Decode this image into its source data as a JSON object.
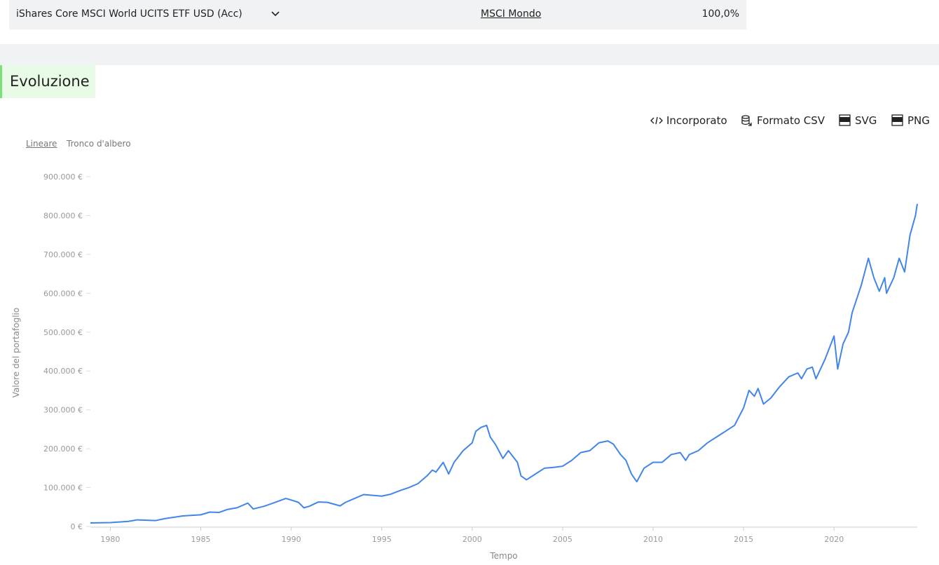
{
  "header": {
    "fund": "iShares Core MSCI World UCITS ETF USD (Acc)",
    "index": "MSCI Mondo",
    "weight": "100,0%"
  },
  "section_title": "Evoluzione",
  "toolbar": [
    "Incorporato",
    "Formato CSV",
    "SVG",
    "PNG"
  ],
  "scale_options": [
    "Lineare",
    "Tronco d'albero"
  ],
  "chart_data": {
    "type": "line",
    "color": "#4285e9",
    "x_label": "Tempo",
    "y_label": "Valore del portafoglio",
    "xlim": [
      1978.9,
      2024.6
    ],
    "ylim": [
      0,
      900000
    ],
    "xticks": [
      1980,
      1985,
      1990,
      1995,
      2000,
      2005,
      2010,
      2015,
      2020
    ],
    "yticks": [
      {
        "value": 0,
        "label": "0 €"
      },
      {
        "value": 100000,
        "label": "100.000 €"
      },
      {
        "value": 200000,
        "label": "200.000 €"
      },
      {
        "value": 300000,
        "label": "300.000 €"
      },
      {
        "value": 400000,
        "label": "400.000 €"
      },
      {
        "value": 500000,
        "label": "500.000 €"
      },
      {
        "value": 600000,
        "label": "600.000 €"
      },
      {
        "value": 700000,
        "label": "700.000 €"
      },
      {
        "value": 800000,
        "label": "800.000 €"
      },
      {
        "value": 900000,
        "label": "900.000 €"
      }
    ],
    "x": [
      1978.9,
      1980,
      1981,
      1981.5,
      1982.5,
      1983,
      1984,
      1985,
      1985.5,
      1986,
      1986.5,
      1987,
      1987.6,
      1987.9,
      1988.5,
      1989,
      1989.7,
      1990,
      1990.4,
      1990.7,
      1991,
      1991.5,
      1992,
      1992.7,
      1993,
      1993.5,
      1994,
      1994.5,
      1995,
      1995.5,
      1996,
      1996.5,
      1997,
      1997.5,
      1997.8,
      1998,
      1998.4,
      1998.7,
      1999,
      1999.5,
      2000,
      2000.2,
      2000.5,
      2000.8,
      2001,
      2001.3,
      2001.7,
      2002,
      2002.5,
      2002.7,
      2003,
      2003.5,
      2004,
      2004.5,
      2005,
      2005.5,
      2006,
      2006.5,
      2007,
      2007.5,
      2007.8,
      2008.2,
      2008.5,
      2008.8,
      2009.1,
      2009.5,
      2010,
      2010.5,
      2011,
      2011.5,
      2011.8,
      2012,
      2012.5,
      2013,
      2013.5,
      2014,
      2014.5,
      2015,
      2015.3,
      2015.6,
      2015.8,
      2016.1,
      2016.5,
      2017,
      2017.5,
      2018,
      2018.2,
      2018.5,
      2018.8,
      2019,
      2019.5,
      2020,
      2020.2,
      2020.5,
      2020.8,
      2021,
      2021.5,
      2021.9,
      2022.2,
      2022.5,
      2022.8,
      2022.9,
      2023.3,
      2023.6,
      2023.9,
      2024.2,
      2024.5,
      2024.6
    ],
    "values": [
      9000,
      10000,
      13000,
      17000,
      15000,
      20000,
      27000,
      30000,
      37000,
      36000,
      44000,
      48000,
      60000,
      45000,
      52000,
      60000,
      72000,
      68000,
      62000,
      48000,
      52000,
      63000,
      62000,
      53000,
      62000,
      72000,
      82000,
      80000,
      78000,
      83000,
      92000,
      100000,
      110000,
      130000,
      145000,
      140000,
      165000,
      135000,
      165000,
      195000,
      215000,
      245000,
      255000,
      260000,
      230000,
      210000,
      175000,
      195000,
      165000,
      130000,
      120000,
      135000,
      150000,
      152000,
      155000,
      170000,
      190000,
      195000,
      215000,
      220000,
      212000,
      185000,
      170000,
      135000,
      115000,
      150000,
      165000,
      165000,
      185000,
      190000,
      170000,
      185000,
      195000,
      215000,
      230000,
      245000,
      260000,
      305000,
      350000,
      335000,
      355000,
      315000,
      330000,
      360000,
      385000,
      395000,
      380000,
      405000,
      410000,
      380000,
      430000,
      490000,
      405000,
      470000,
      500000,
      550000,
      620000,
      690000,
      640000,
      605000,
      640000,
      600000,
      640000,
      690000,
      655000,
      750000,
      800000,
      830000
    ]
  }
}
